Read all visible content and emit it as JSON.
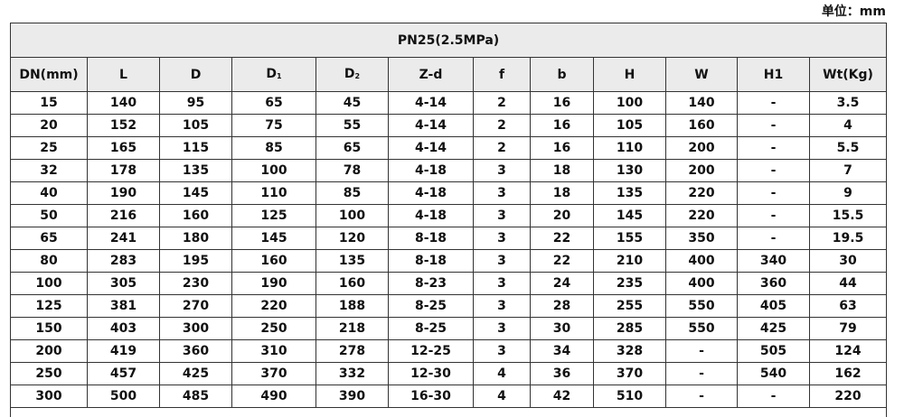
{
  "unit_label": "单位：mm",
  "table": {
    "title": "PN25(2.5MPa)",
    "headers": [
      {
        "main": "DN(mm)",
        "sub": ""
      },
      {
        "main": "L",
        "sub": ""
      },
      {
        "main": "D",
        "sub": ""
      },
      {
        "main": "D",
        "sub": "1"
      },
      {
        "main": "D",
        "sub": "2"
      },
      {
        "main": "Z-d",
        "sub": ""
      },
      {
        "main": "f",
        "sub": ""
      },
      {
        "main": "b",
        "sub": ""
      },
      {
        "main": "H",
        "sub": ""
      },
      {
        "main": "W",
        "sub": ""
      },
      {
        "main": "H1",
        "sub": ""
      },
      {
        "main": "Wt(Kg)",
        "sub": ""
      }
    ],
    "rows": [
      [
        "15",
        "140",
        "95",
        "65",
        "45",
        "4-14",
        "2",
        "16",
        "100",
        "140",
        "-",
        "3.5"
      ],
      [
        "20",
        "152",
        "105",
        "75",
        "55",
        "4-14",
        "2",
        "16",
        "105",
        "160",
        "-",
        "4"
      ],
      [
        "25",
        "165",
        "115",
        "85",
        "65",
        "4-14",
        "2",
        "16",
        "110",
        "200",
        "-",
        "5.5"
      ],
      [
        "32",
        "178",
        "135",
        "100",
        "78",
        "4-18",
        "3",
        "18",
        "130",
        "200",
        "-",
        "7"
      ],
      [
        "40",
        "190",
        "145",
        "110",
        "85",
        "4-18",
        "3",
        "18",
        "135",
        "220",
        "-",
        "9"
      ],
      [
        "50",
        "216",
        "160",
        "125",
        "100",
        "4-18",
        "3",
        "20",
        "145",
        "220",
        "-",
        "15.5"
      ],
      [
        "65",
        "241",
        "180",
        "145",
        "120",
        "8-18",
        "3",
        "22",
        "155",
        "350",
        "-",
        "19.5"
      ],
      [
        "80",
        "283",
        "195",
        "160",
        "135",
        "8-18",
        "3",
        "22",
        "210",
        "400",
        "340",
        "30"
      ],
      [
        "100",
        "305",
        "230",
        "190",
        "160",
        "8-23",
        "3",
        "24",
        "235",
        "400",
        "360",
        "44"
      ],
      [
        "125",
        "381",
        "270",
        "220",
        "188",
        "8-25",
        "3",
        "28",
        "255",
        "550",
        "405",
        "63"
      ],
      [
        "150",
        "403",
        "300",
        "250",
        "218",
        "8-25",
        "3",
        "30",
        "285",
        "550",
        "425",
        "79"
      ],
      [
        "200",
        "419",
        "360",
        "310",
        "278",
        "12-25",
        "3",
        "34",
        "328",
        "-",
        "505",
        "124"
      ],
      [
        "250",
        "457",
        "425",
        "370",
        "332",
        "12-30",
        "4",
        "36",
        "370",
        "-",
        "540",
        "162"
      ],
      [
        "300",
        "500",
        "485",
        "490",
        "390",
        "16-30",
        "4",
        "42",
        "510",
        "-",
        "-",
        "220"
      ]
    ]
  }
}
